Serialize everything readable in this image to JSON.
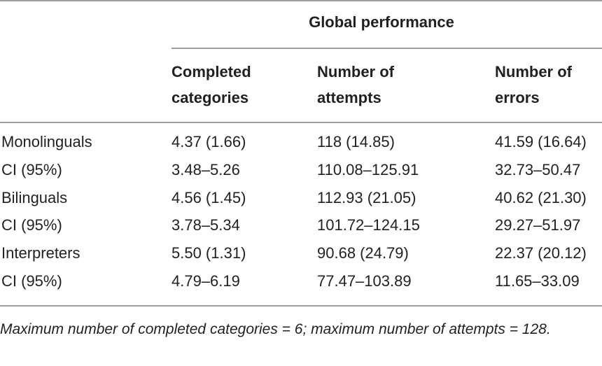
{
  "table": {
    "group_header": "Global performance",
    "column_headers": [
      "Completed categories",
      "Number of attempts",
      "Number of errors"
    ],
    "rows": [
      [
        "Monolinguals",
        "4.37 (1.66)",
        "118 (14.85)",
        "41.59 (16.64)"
      ],
      [
        "CI (95%)",
        "3.48–5.26",
        "110.08–125.91",
        "32.73–50.47"
      ],
      [
        "Bilinguals",
        "4.56 (1.45)",
        "112.93 (21.05)",
        "40.62 (21.30)"
      ],
      [
        "CI (95%)",
        "3.78–5.34",
        "101.72–124.15",
        "29.27–51.97"
      ],
      [
        "Interpreters",
        "5.50 (1.31)",
        "90.68 (24.79)",
        "22.37 (20.12)"
      ],
      [
        "CI (95%)",
        "4.79–6.19",
        "77.47–103.89",
        "11.65–33.09"
      ]
    ],
    "footnote": "Maximum number of completed categories = 6; maximum number of attempts = 128."
  }
}
